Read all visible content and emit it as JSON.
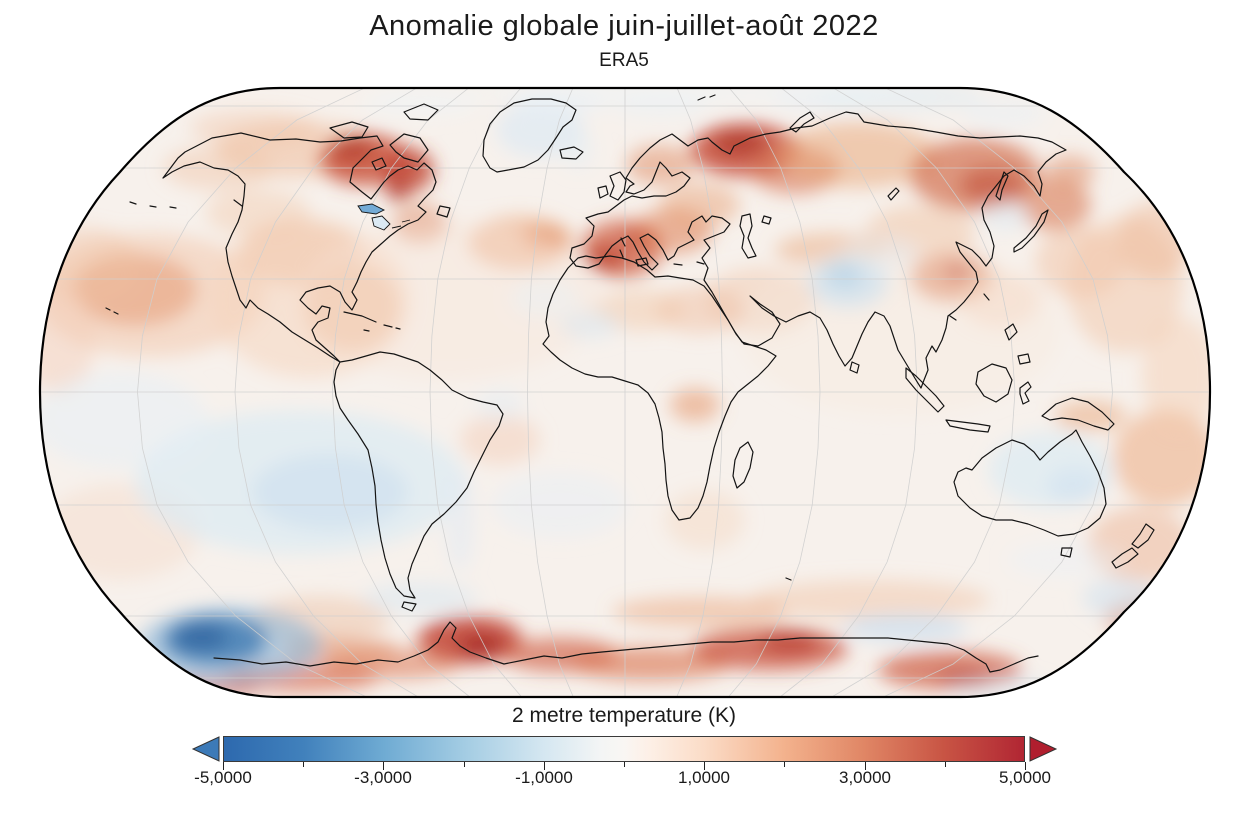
{
  "header": {
    "title": "Anomalie globale juin-juillet-août 2022",
    "subtitle": "ERA5"
  },
  "colorbar": {
    "label": "2 metre temperature (K)",
    "tick_labels": [
      "-5,0000",
      "-3,0000",
      "-1,0000",
      "1,0000",
      "3,0000",
      "5,0000"
    ],
    "minor_tick_values": [
      -4,
      -2,
      0,
      2,
      4
    ],
    "extend_arrows": "both"
  },
  "chart_data": {
    "type": "heatmap",
    "title": "Anomalie globale juin-juillet-août 2022",
    "subtitle": "ERA5",
    "variable": "2 metre temperature (K)",
    "season": "juin-juillet-août (JJA) 2022",
    "dataset": "ERA5",
    "projection": "Robinson",
    "graticule_deg": 30,
    "value_range": [
      -5,
      5
    ],
    "units": "K",
    "legend_position": "bottom",
    "colormap": {
      "name": "diverging blue-white-red (RdBu reversed)",
      "stops": [
        {
          "value": -5,
          "color": "#2d69ae"
        },
        {
          "value": -4,
          "color": "#4181bc"
        },
        {
          "value": -3,
          "color": "#6fabd3"
        },
        {
          "value": -2,
          "color": "#a3cce3"
        },
        {
          "value": -1,
          "color": "#d5e7f1"
        },
        {
          "value": 0,
          "color": "#f9f6f3"
        },
        {
          "value": 1,
          "color": "#fbdcc7"
        },
        {
          "value": 2,
          "color": "#f3b28d"
        },
        {
          "value": 3,
          "color": "#e08665"
        },
        {
          "value": 4,
          "color": "#c85444"
        },
        {
          "value": 5,
          "color": "#b12633"
        }
      ],
      "under_arrow_color": "#3c7ab8",
      "over_arrow_color": "#b01e2e"
    },
    "notable_anomalies": [
      {
        "region": "Antarctic Peninsula / Weddell Sea coast",
        "anomaly_K": 4.5
      },
      {
        "region": "East Antarctic coastal sectors",
        "anomaly_K": 3.5
      },
      {
        "region": "South Pacific around 55S 120W",
        "anomaly_K": -4
      },
      {
        "region": "Western Europe (Iberia, France)",
        "anomaly_K": 3
      },
      {
        "region": "Northwest Russia",
        "anomaly_K": 3
      },
      {
        "region": "Eastern Siberia / Chukotka",
        "anomaly_K": 2.5
      },
      {
        "region": "Baffin Island / Hudson Bay (Canada)",
        "anomaly_K": 3
      },
      {
        "region": "Central China",
        "anomaly_K": 2.5
      },
      {
        "region": "North Pacific west of North America",
        "anomaly_K": 2
      },
      {
        "region": "Tibetan Plateau / NW India",
        "anomaly_K": -1.5
      },
      {
        "region": "Central Australia",
        "anomaly_K": -1
      },
      {
        "region": "Greenland interior",
        "anomaly_K": -0.5
      },
      {
        "region": "Lake Superior",
        "anomaly_K": -2
      },
      {
        "region": "Tropical oceans",
        "anomaly_K": 0.3
      }
    ]
  }
}
